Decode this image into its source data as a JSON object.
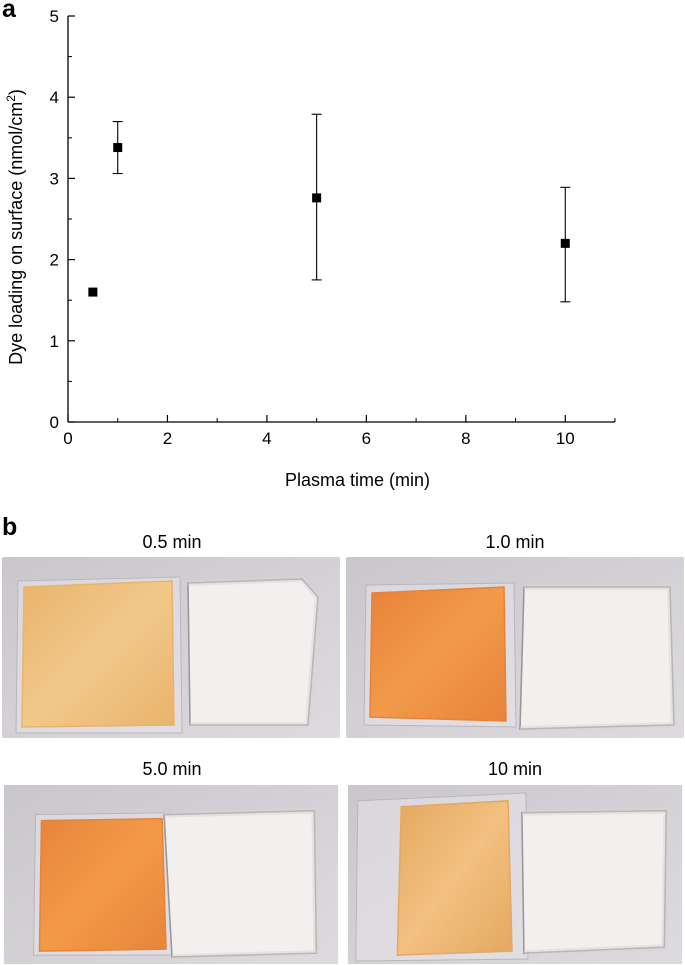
{
  "panel_a_label": "a",
  "panel_b_label": "b",
  "chart_data": {
    "type": "scatter",
    "title": "",
    "xlabel": "Plasma time (min)",
    "ylabel_main": "Dye loading on surface (nmol/cm",
    "ylabel_sup": "2",
    "ylabel_tail": ")",
    "xlim": [
      0,
      11
    ],
    "ylim": [
      0,
      5
    ],
    "xticks": [
      0,
      2,
      4,
      6,
      8,
      10
    ],
    "yticks": [
      0,
      1,
      2,
      3,
      4,
      5
    ],
    "grid": false,
    "marker_color": "#000000",
    "points": [
      {
        "x": 0.5,
        "y": 1.6,
        "err_low": 1.6,
        "err_high": 1.6
      },
      {
        "x": 1.0,
        "y": 3.38,
        "err_low": 3.06,
        "err_high": 3.7
      },
      {
        "x": 5.0,
        "y": 2.76,
        "err_low": 1.75,
        "err_high": 3.79
      },
      {
        "x": 10.0,
        "y": 2.2,
        "err_low": 1.48,
        "err_high": 2.89
      }
    ]
  },
  "photos": [
    {
      "title": "0.5 min",
      "gel_color": "#f2c88a",
      "gel_shade": "#e9b36c"
    },
    {
      "title": "1.0 min",
      "gel_color": "#f29a4a",
      "gel_shade": "#e8823a"
    },
    {
      "title": "5.0 min",
      "gel_color": "#f39a48",
      "gel_shade": "#e7843a"
    },
    {
      "title": "10 min",
      "gel_color": "#f2c080",
      "gel_shade": "#e4a862"
    }
  ]
}
